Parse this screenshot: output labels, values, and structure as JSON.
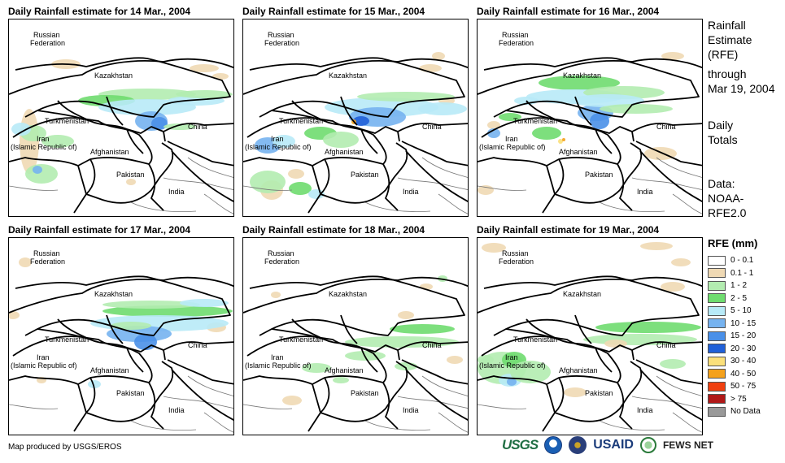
{
  "panels": [
    {
      "title": "Daily Rainfall estimate for 14 Mar., 2004"
    },
    {
      "title": "Daily Rainfall estimate for 15 Mar., 2004"
    },
    {
      "title": "Daily Rainfall estimate for 16 Mar., 2004"
    },
    {
      "title": "Daily Rainfall estimate for 17 Mar., 2004"
    },
    {
      "title": "Daily Rainfall estimate for 18 Mar., 2004"
    },
    {
      "title": "Daily Rainfall estimate for 19 Mar., 2004"
    }
  ],
  "map_labels": {
    "russia_1": "Russian",
    "russia_2": "Federation",
    "kazakhstan": "Kazakhstan",
    "turkmenistan": "Turkmenistan",
    "china": "China",
    "iran_1": "Iran",
    "iran_2": "(Islamic Republic of)",
    "afghanistan": "Afghanistan",
    "pakistan": "Pakistan",
    "india": "India"
  },
  "sidebar": {
    "title_1": "Rainfall",
    "title_2": "Estimate",
    "title_3": "(RFE)",
    "through_1": "through",
    "through_2": "Mar 19, 2004",
    "totals_1": "Daily",
    "totals_2": "Totals",
    "source_1": "Data:",
    "source_2": "NOAA-",
    "source_3": "RFE2.0"
  },
  "legend": {
    "title": "RFE (mm)",
    "items": [
      {
        "label": "0 - 0.1",
        "color": "#ffffff"
      },
      {
        "label": "0.1 - 1",
        "color": "#efd9b4"
      },
      {
        "label": "1 - 2",
        "color": "#b3ecb0"
      },
      {
        "label": "2 - 5",
        "color": "#6fdc6f"
      },
      {
        "label": "5 - 10",
        "color": "#b8eaf7"
      },
      {
        "label": "10 - 15",
        "color": "#76b3f0"
      },
      {
        "label": "15 - 20",
        "color": "#4a90e8"
      },
      {
        "label": "20 - 30",
        "color": "#2060d8"
      },
      {
        "label": "30 - 40",
        "color": "#fbe07a"
      },
      {
        "label": "40 - 50",
        "color": "#f4a11c"
      },
      {
        "label": "50 - 75",
        "color": "#f04010"
      },
      {
        "label": "> 75",
        "color": "#b01818"
      },
      {
        "label": "No Data",
        "color": "#999999"
      }
    ]
  },
  "footer": {
    "credit": "Map produced by USGS/EROS",
    "logo_usgs": "USGS",
    "logo_usaid": "USAID",
    "logo_fews": "FEWS NET"
  }
}
